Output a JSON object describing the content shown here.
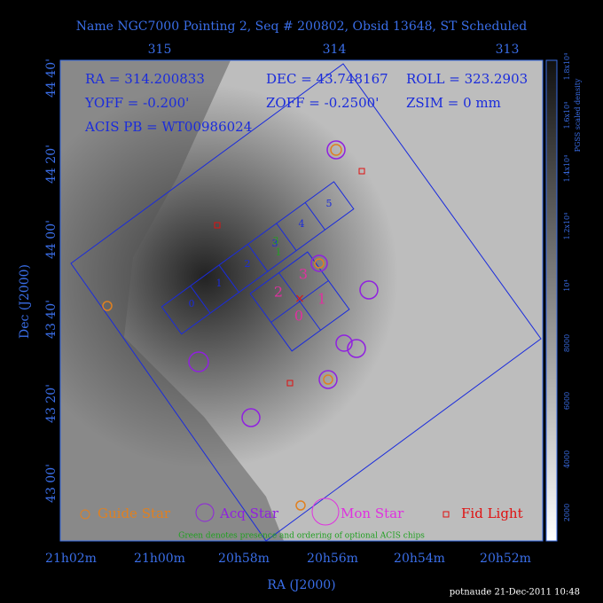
{
  "title": "Name NGC7000 Pointing 2, Seq # 200802, Obsid 13648, ST Scheduled",
  "top_axis": {
    "labels": [
      "315",
      "314",
      "313"
    ]
  },
  "bottom_axis": {
    "labels": [
      "21h02m",
      "21h00m",
      "20h58m",
      "20h56m",
      "20h54m",
      "20h52m"
    ],
    "title": "RA (J2000)"
  },
  "left_axis": {
    "labels": [
      "44 40'",
      "44 20'",
      "44 00'",
      "43 40'",
      "43 20'",
      "43 00'"
    ],
    "title": "Dec (J2000)"
  },
  "info": [
    "RA = 314.200833",
    "DEC = 43.748167",
    "ROLL = 323.2903",
    "YOFF = -0.200'",
    "ZOFF = -0.2500'",
    "ZSIM = 0 mm",
    "ACIS PB = WT00986024"
  ],
  "acis_s_labels": [
    "0",
    "1",
    "2",
    "3",
    "4",
    "5"
  ],
  "acis_i_labels": [
    "0",
    "1",
    "2",
    "3"
  ],
  "optional_labels": [
    "3",
    "1"
  ],
  "legend": [
    "Guide Star",
    "Acq Star",
    "Mon Star",
    "Fid Light"
  ],
  "note": "Green denotes presence and ordering of optional ACIS chips",
  "colorbar": {
    "labels": [
      "2000",
      "4000",
      "6000",
      "8000",
      "10⁴",
      "1.2x10⁴",
      "1.4x10⁴",
      "1.6x10⁴",
      "1.8x10⁴"
    ],
    "title": "PGSS scaled density"
  },
  "footer": "potnaude 21-Dec-2011 10:48"
}
